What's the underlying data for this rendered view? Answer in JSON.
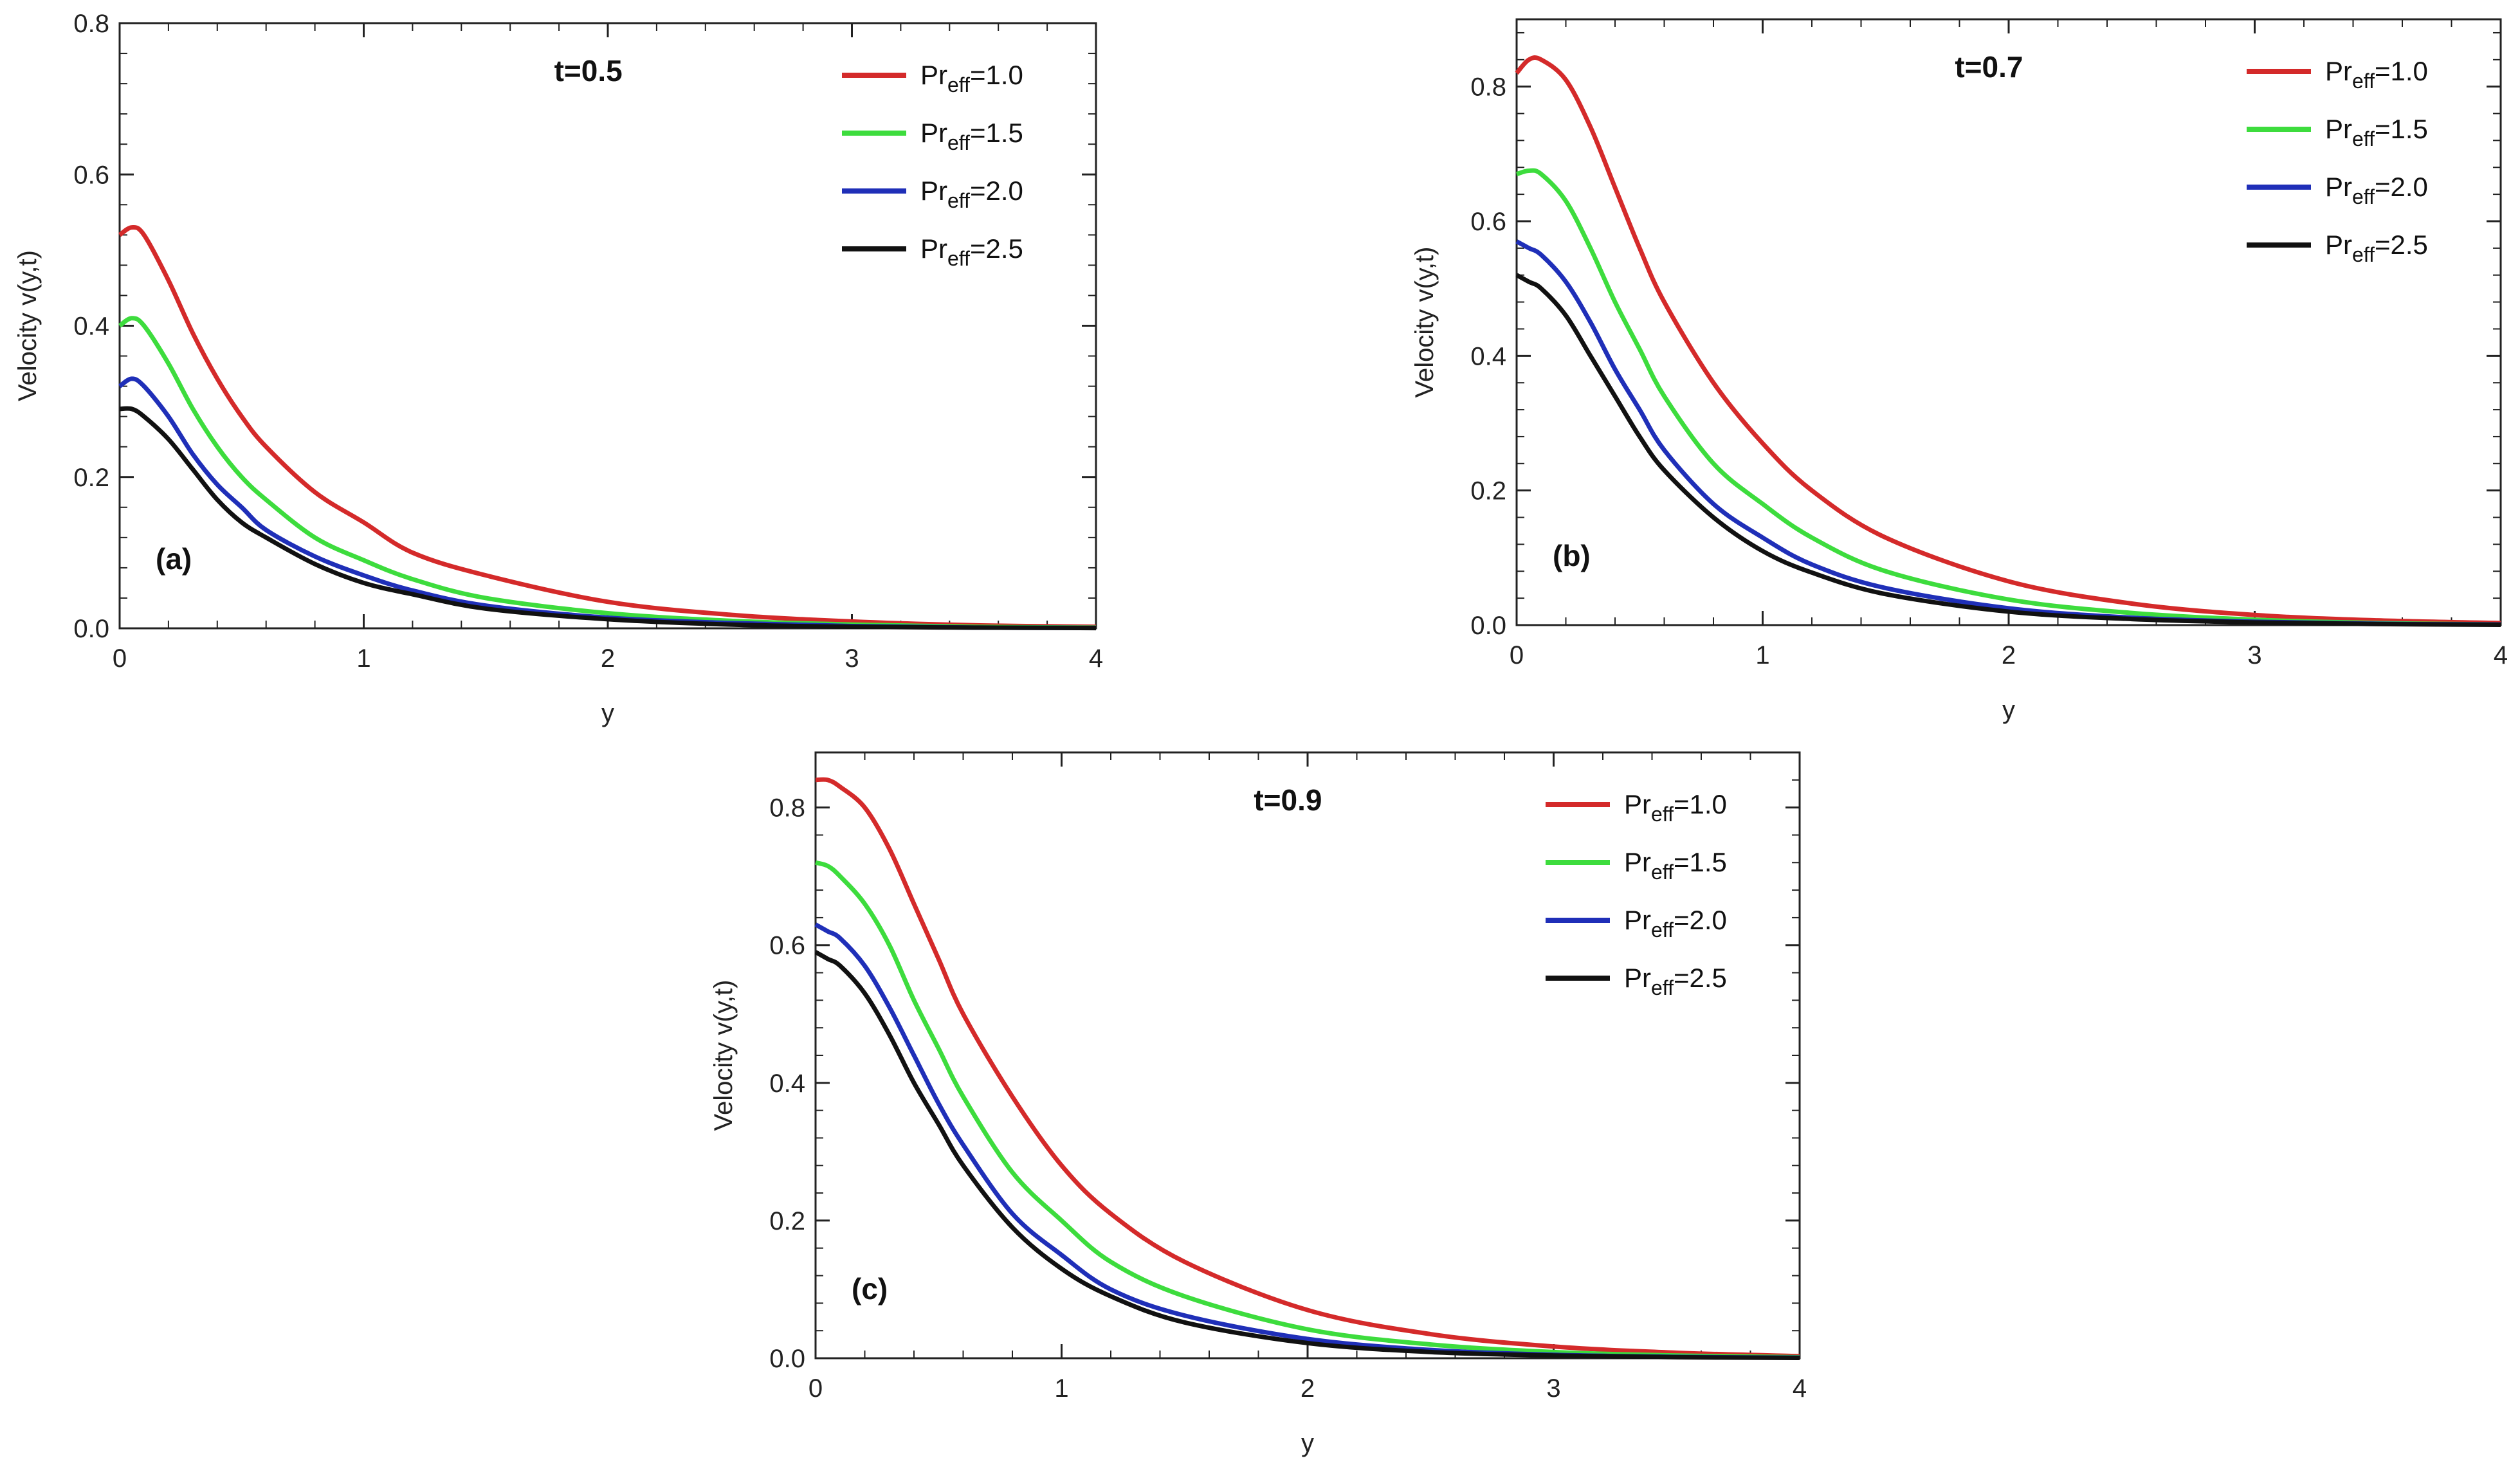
{
  "chart_data": [
    {
      "type": "line",
      "title": "t=0.5",
      "panel_label": "(a)",
      "xlabel": "y",
      "ylabel": "Velocity v(y,t)",
      "xlim": [
        0,
        4
      ],
      "ylim": [
        0,
        0.8
      ],
      "x_ticks": [
        0,
        1,
        2,
        3,
        4
      ],
      "x_tick_labels": [
        "0",
        "1",
        "2",
        "3",
        "4"
      ],
      "y_ticks": [
        0,
        0.2,
        0.4,
        0.6,
        0.8
      ],
      "y_tick_labels": [
        "0.0",
        "0.2",
        "0.4",
        "0.6",
        "0.8"
      ],
      "legend_position": "top-right",
      "x": [
        0,
        0.05,
        0.1,
        0.2,
        0.3,
        0.4,
        0.5,
        0.6,
        0.8,
        1.0,
        1.2,
        1.5,
        2.0,
        2.5,
        3.0,
        3.5,
        4.0
      ],
      "series": [
        {
          "name": "Pr",
          "subscript": "eff",
          "value_text": "=1.0",
          "color": "#d42a2a",
          "values": [
            0.52,
            0.53,
            0.52,
            0.46,
            0.39,
            0.33,
            0.28,
            0.24,
            0.18,
            0.14,
            0.1,
            0.07,
            0.035,
            0.018,
            0.009,
            0.004,
            0.002
          ]
        },
        {
          "name": "Pr",
          "subscript": "eff",
          "value_text": "=1.5",
          "color": "#3ddc3d",
          "values": [
            0.4,
            0.41,
            0.4,
            0.35,
            0.29,
            0.24,
            0.2,
            0.17,
            0.12,
            0.09,
            0.065,
            0.04,
            0.02,
            0.01,
            0.005,
            0.002,
            0.001
          ]
        },
        {
          "name": "Pr",
          "subscript": "eff",
          "value_text": "=2.0",
          "color": "#1f2fb8",
          "values": [
            0.32,
            0.33,
            0.32,
            0.28,
            0.23,
            0.19,
            0.16,
            0.13,
            0.095,
            0.07,
            0.05,
            0.03,
            0.014,
            0.007,
            0.003,
            0.001,
            0.0005
          ]
        },
        {
          "name": "Pr",
          "subscript": "eff",
          "value_text": "=2.5",
          "color": "#111111",
          "values": [
            0.29,
            0.29,
            0.28,
            0.25,
            0.21,
            0.17,
            0.14,
            0.12,
            0.085,
            0.06,
            0.045,
            0.026,
            0.012,
            0.005,
            0.002,
            0.001,
            0.0003
          ]
        }
      ]
    },
    {
      "type": "line",
      "title": "t=0.7",
      "panel_label": "(b)",
      "xlabel": "y",
      "ylabel": "Velocity v(y,t)",
      "xlim": [
        0,
        4
      ],
      "ylim": [
        0,
        0.9
      ],
      "x_ticks": [
        0,
        1,
        2,
        3,
        4
      ],
      "x_tick_labels": [
        "0",
        "1",
        "2",
        "3",
        "4"
      ],
      "y_ticks": [
        0,
        0.2,
        0.4,
        0.6,
        0.8
      ],
      "y_tick_labels": [
        "0.0",
        "0.2",
        "0.4",
        "0.6",
        "0.8"
      ],
      "legend_position": "top-right",
      "x": [
        0,
        0.05,
        0.1,
        0.2,
        0.3,
        0.4,
        0.5,
        0.6,
        0.8,
        1.0,
        1.2,
        1.5,
        2.0,
        2.5,
        3.0,
        3.5,
        4.0
      ],
      "series": [
        {
          "name": "Pr",
          "subscript": "eff",
          "value_text": "=1.0",
          "color": "#d42a2a",
          "values": [
            0.82,
            0.84,
            0.84,
            0.81,
            0.74,
            0.65,
            0.56,
            0.48,
            0.36,
            0.27,
            0.2,
            0.13,
            0.065,
            0.032,
            0.015,
            0.007,
            0.003
          ]
        },
        {
          "name": "Pr",
          "subscript": "eff",
          "value_text": "=1.5",
          "color": "#3ddc3d",
          "values": [
            0.67,
            0.675,
            0.67,
            0.63,
            0.56,
            0.48,
            0.41,
            0.34,
            0.24,
            0.18,
            0.13,
            0.08,
            0.038,
            0.018,
            0.008,
            0.003,
            0.001
          ]
        },
        {
          "name": "Pr",
          "subscript": "eff",
          "value_text": "=2.0",
          "color": "#1f2fb8",
          "values": [
            0.57,
            0.56,
            0.55,
            0.51,
            0.45,
            0.38,
            0.32,
            0.26,
            0.18,
            0.13,
            0.09,
            0.055,
            0.025,
            0.011,
            0.005,
            0.002,
            0.001
          ]
        },
        {
          "name": "Pr",
          "subscript": "eff",
          "value_text": "=2.5",
          "color": "#111111",
          "values": [
            0.52,
            0.51,
            0.5,
            0.46,
            0.4,
            0.34,
            0.28,
            0.23,
            0.16,
            0.11,
            0.078,
            0.046,
            0.02,
            0.009,
            0.004,
            0.0015,
            0.0005
          ]
        }
      ]
    },
    {
      "type": "line",
      "title": "t=0.9",
      "panel_label": "(c)",
      "xlabel": "y",
      "ylabel": "Velocity v(y,t)",
      "xlim": [
        0,
        4
      ],
      "ylim": [
        0,
        0.88
      ],
      "x_ticks": [
        0,
        1,
        2,
        3,
        4
      ],
      "x_tick_labels": [
        "0",
        "1",
        "2",
        "3",
        "4"
      ],
      "y_ticks": [
        0,
        0.2,
        0.4,
        0.6,
        0.8
      ],
      "y_tick_labels": [
        "0.0",
        "0.2",
        "0.4",
        "0.6",
        "0.8"
      ],
      "legend_position": "top-right",
      "x": [
        0,
        0.05,
        0.1,
        0.2,
        0.3,
        0.4,
        0.5,
        0.6,
        0.8,
        1.0,
        1.2,
        1.5,
        2.0,
        2.5,
        3.0,
        3.5,
        4.0
      ],
      "series": [
        {
          "name": "Pr",
          "subscript": "eff",
          "value_text": "=1.0",
          "color": "#d42a2a",
          "values": [
            0.84,
            0.84,
            0.83,
            0.8,
            0.74,
            0.66,
            0.58,
            0.5,
            0.38,
            0.28,
            0.21,
            0.14,
            0.07,
            0.035,
            0.017,
            0.008,
            0.003
          ]
        },
        {
          "name": "Pr",
          "subscript": "eff",
          "value_text": "=1.5",
          "color": "#3ddc3d",
          "values": [
            0.72,
            0.715,
            0.7,
            0.66,
            0.6,
            0.52,
            0.45,
            0.38,
            0.27,
            0.2,
            0.14,
            0.09,
            0.042,
            0.02,
            0.009,
            0.004,
            0.0015
          ]
        },
        {
          "name": "Pr",
          "subscript": "eff",
          "value_text": "=2.0",
          "color": "#1f2fb8",
          "values": [
            0.63,
            0.62,
            0.61,
            0.57,
            0.51,
            0.44,
            0.37,
            0.31,
            0.21,
            0.15,
            0.1,
            0.062,
            0.028,
            0.012,
            0.005,
            0.002,
            0.0008
          ]
        },
        {
          "name": "Pr",
          "subscript": "eff",
          "value_text": "=2.5",
          "color": "#111111",
          "values": [
            0.59,
            0.58,
            0.57,
            0.53,
            0.47,
            0.4,
            0.34,
            0.28,
            0.19,
            0.13,
            0.09,
            0.052,
            0.022,
            0.009,
            0.004,
            0.0015,
            0.0005
          ]
        }
      ]
    }
  ]
}
